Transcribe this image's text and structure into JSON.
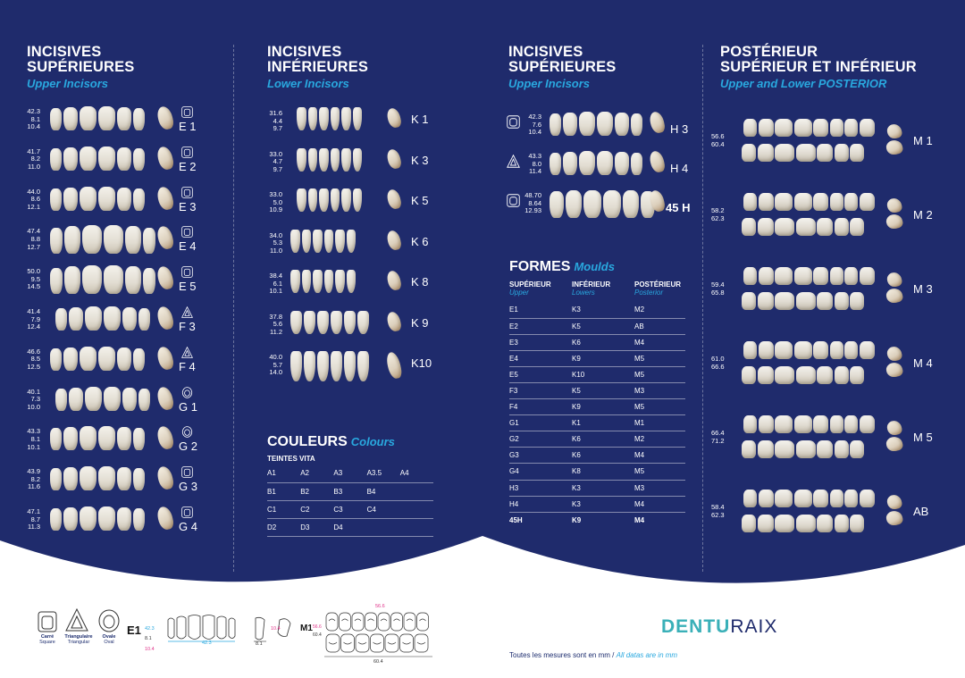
{
  "colors": {
    "navy": "#1f2b6c",
    "accent": "#29a8df",
    "logo_teal": "#3ab0b8",
    "text_dark": "#1c2c6e",
    "pink": "#e0338a"
  },
  "sections": {
    "upper_incisors_1": {
      "title_l1": "INCISIVES",
      "title_l2": "SUPÉRIEURES",
      "subtitle": "Upper Incisors"
    },
    "lower_incisors": {
      "title_l1": "INCISIVES",
      "title_l2": "INFÉRIEURES",
      "subtitle": "Lower Incisors"
    },
    "upper_incisors_2": {
      "title_l1": "INCISIVES",
      "title_l2": "SUPÉRIEURES",
      "subtitle": "Upper Incisors"
    },
    "posterior": {
      "title_l1": "POSTÉRIEUR",
      "title_l2": "SUPÉRIEUR ET INFÉRIEUR",
      "subtitle": "Upper and Lower POSTERIOR"
    }
  },
  "upper_left_rows": [
    {
      "m1": "42.3",
      "m2": "8.1",
      "m3": "10.4",
      "label": "E 1",
      "shape": "square"
    },
    {
      "m1": "41.7",
      "m2": "8.2",
      "m3": "11.0",
      "label": "E 2",
      "shape": "square"
    },
    {
      "m1": "44.0",
      "m2": "8.6",
      "m3": "12.1",
      "label": "E 3",
      "shape": "square"
    },
    {
      "m1": "47.4",
      "m2": "8.8",
      "m3": "12.7",
      "label": "E 4",
      "shape": "square"
    },
    {
      "m1": "50.0",
      "m2": "9.5",
      "m3": "14.5",
      "label": "E 5",
      "shape": "square"
    },
    {
      "m1": "41.4",
      "m2": "7.9",
      "m3": "12.4",
      "label": "F 3",
      "shape": "triangle"
    },
    {
      "m1": "46.6",
      "m2": "8.5",
      "m3": "12.5",
      "label": "F 4",
      "shape": "triangle"
    },
    {
      "m1": "40.1",
      "m2": "7.3",
      "m3": "10.0",
      "label": "G 1",
      "shape": "oval"
    },
    {
      "m1": "43.3",
      "m2": "8.1",
      "m3": "10.1",
      "label": "G 2",
      "shape": "oval"
    },
    {
      "m1": "43.9",
      "m2": "8.2",
      "m3": "11.6",
      "label": "G 3",
      "shape": "square"
    },
    {
      "m1": "47.1",
      "m2": "8.7",
      "m3": "11.3",
      "label": "G 4",
      "shape": "square"
    }
  ],
  "lower_rows": [
    {
      "m1": "31.6",
      "m2": "4.4",
      "m3": "9.7",
      "label": "K 1"
    },
    {
      "m1": "33.0",
      "m2": "4.7",
      "m3": "9.7",
      "label": "K 3"
    },
    {
      "m1": "33.0",
      "m2": "5.0",
      "m3": "10.9",
      "label": "K 5"
    },
    {
      "m1": "34.0",
      "m2": "5.3",
      "m3": "11.0",
      "label": "K 6"
    },
    {
      "m1": "38.4",
      "m2": "6.1",
      "m3": "10.1",
      "label": "K 8"
    },
    {
      "m1": "37.8",
      "m2": "5.6",
      "m3": "11.2",
      "label": "K 9"
    },
    {
      "m1": "40.0",
      "m2": "5.7",
      "m3": "14.0",
      "label": "K10"
    }
  ],
  "upper_right_rows": [
    {
      "m1": "42.3",
      "m2": "7.6",
      "m3": "10.4",
      "label": "H 3",
      "shape": "square"
    },
    {
      "m1": "43.3",
      "m2": "8.0",
      "m3": "11.4",
      "label": "H 4",
      "shape": "triangle"
    },
    {
      "m1": "48.70",
      "m2": "8.64",
      "m3": "12.93",
      "label": "45 H",
      "shape": "square"
    }
  ],
  "posterior_rows": [
    {
      "m1": "56.6",
      "m2": "60.4",
      "label": "M 1"
    },
    {
      "m1": "58.2",
      "m2": "62.3",
      "label": "M 2"
    },
    {
      "m1": "59.4",
      "m2": "65.8",
      "label": "M 3"
    },
    {
      "m1": "61.0",
      "m2": "66.6",
      "label": "M 4"
    },
    {
      "m1": "66.4",
      "m2": "71.2",
      "label": "M 5"
    },
    {
      "m1": "58.4",
      "m2": "62.3",
      "label": "AB"
    }
  ],
  "colours": {
    "title": "COULEURS",
    "subtitle": "Colours",
    "header": "TEINTES VITA",
    "rows": [
      [
        "A1",
        "A2",
        "A3",
        "A3.5",
        "A4"
      ],
      [
        "B1",
        "B2",
        "B3",
        "B4",
        ""
      ],
      [
        "C1",
        "C2",
        "C3",
        "C4",
        ""
      ],
      [
        "D2",
        "D3",
        "D4",
        "",
        ""
      ]
    ]
  },
  "moulds": {
    "title": "FORMES",
    "subtitle": "Moulds",
    "headers": [
      [
        "SUPÉRIEUR",
        "Upper"
      ],
      [
        "INFÉRIEUR",
        "Lowers"
      ],
      [
        "POSTÉRIEUR",
        "Posterior"
      ]
    ],
    "rows": [
      [
        "E1",
        "K3",
        "M2"
      ],
      [
        "E2",
        "K5",
        "AB"
      ],
      [
        "E3",
        "K6",
        "M4"
      ],
      [
        "E4",
        "K9",
        "M5"
      ],
      [
        "E5",
        "K10",
        "M5"
      ],
      [
        "F3",
        "K5",
        "M3"
      ],
      [
        "F4",
        "K9",
        "M5"
      ],
      [
        "G1",
        "K1",
        "M1"
      ],
      [
        "G2",
        "K6",
        "M2"
      ],
      [
        "G3",
        "K6",
        "M4"
      ],
      [
        "G4",
        "K8",
        "M5"
      ],
      [
        "H3",
        "K3",
        "M3"
      ],
      [
        "H4",
        "K3",
        "M4"
      ],
      [
        "45H",
        "K9",
        "M4"
      ]
    ]
  },
  "legend": {
    "carre": "Carré",
    "carre_en": "Square",
    "tri": "Triangulaire",
    "tri_en": "Triangular",
    "oval": "Ovale",
    "oval_en": "Oval",
    "e1": "E1",
    "e1_m1": "42.3",
    "e1_m2": "8.1",
    "e1_m3": "10.4",
    "e1_w": "42.3",
    "side_w": "8.1",
    "side_h": "10.4",
    "m1": "M1",
    "m1_a": "56.6",
    "m1_b": "60.4",
    "m1_top": "56.6",
    "m1_bottom": "60.4"
  },
  "brand": {
    "logo_a": "DENTU",
    "logo_b": "RAIX",
    "note": "Toutes les mesures sont en mm / ",
    "note_en": "All datas are in mm"
  }
}
